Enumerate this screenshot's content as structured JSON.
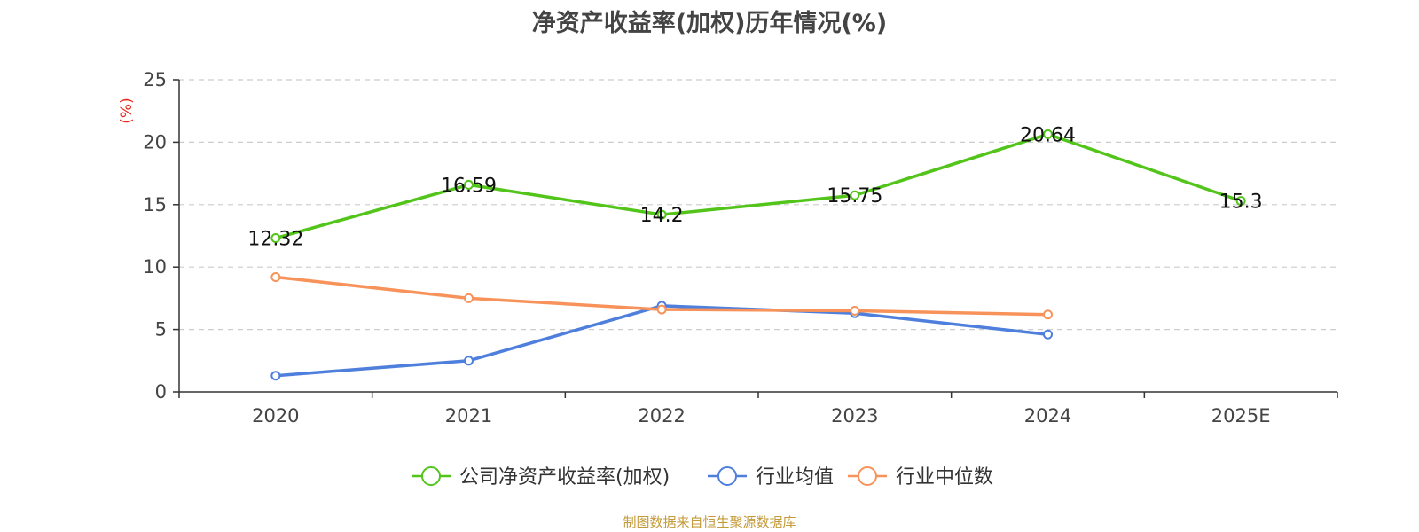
{
  "chart_data": {
    "type": "line",
    "title": "净资产收益率(加权)历年情况(%)",
    "ylabel": "(%)",
    "xlabel": "",
    "categories": [
      "2020",
      "2021",
      "2022",
      "2023",
      "2024",
      "2025E"
    ],
    "ylim": [
      0,
      25
    ],
    "yticks": [
      0,
      5,
      10,
      15,
      20,
      25
    ],
    "grid": true,
    "legend_position": "bottom",
    "series": [
      {
        "name": "公司净资产收益率(加权)",
        "color": "#52c41a",
        "values": [
          12.32,
          16.59,
          14.2,
          15.75,
          20.64,
          15.3
        ],
        "labels": [
          "12.32",
          "16.59",
          "14.2",
          "15.75",
          "20.64",
          "15.3"
        ]
      },
      {
        "name": "行业均值",
        "color": "#4f7fdc",
        "values": [
          1.3,
          2.5,
          6.9,
          6.3,
          4.6,
          null
        ]
      },
      {
        "name": "行业中位数",
        "color": "#f7935a",
        "values": [
          9.2,
          7.5,
          6.6,
          6.5,
          6.2,
          null
        ]
      }
    ]
  },
  "source_note": "制图数据来自恒生聚源数据库"
}
